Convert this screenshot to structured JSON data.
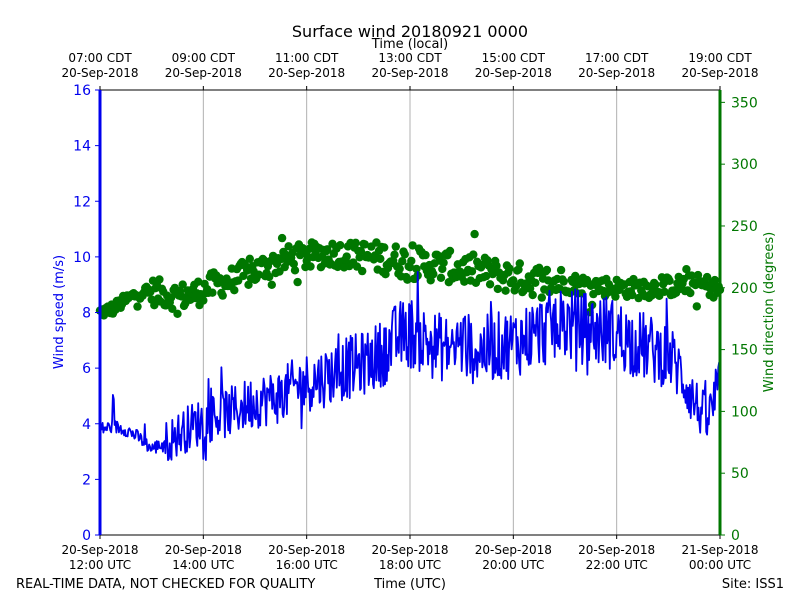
{
  "chart_data": {
    "type": "line+scatter",
    "title": "Surface wind 20180921 0000",
    "top_axis_label": "Time (local)",
    "xlabel": "Time (UTC)",
    "ylabel_left": "Wind speed (m/s)",
    "ylabel_right": "Wind direction (degrees)",
    "left_ylim": [
      0,
      16
    ],
    "right_ylim": [
      0,
      360
    ],
    "left_ticks": [
      "0",
      "2",
      "4",
      "6",
      "8",
      "10",
      "12",
      "14",
      "16"
    ],
    "right_ticks": [
      "0",
      "50",
      "100",
      "150",
      "200",
      "250",
      "300",
      "350"
    ],
    "bottom_ticks": [
      {
        "line1": "20-Sep-2018",
        "line2": "12:00 UTC"
      },
      {
        "line1": "20-Sep-2018",
        "line2": "14:00 UTC"
      },
      {
        "line1": "20-Sep-2018",
        "line2": "16:00 UTC"
      },
      {
        "line1": "20-Sep-2018",
        "line2": "18:00 UTC"
      },
      {
        "line1": "20-Sep-2018",
        "line2": "20:00 UTC"
      },
      {
        "line1": "20-Sep-2018",
        "line2": "22:00 UTC"
      },
      {
        "line1": "21-Sep-2018",
        "line2": "00:00 UTC"
      }
    ],
    "top_ticks": [
      {
        "line1": "07:00 CDT",
        "line2": "20-Sep-2018"
      },
      {
        "line1": "09:00 CDT",
        "line2": "20-Sep-2018"
      },
      {
        "line1": "11:00 CDT",
        "line2": "20-Sep-2018"
      },
      {
        "line1": "13:00 CDT",
        "line2": "20-Sep-2018"
      },
      {
        "line1": "15:00 CDT",
        "line2": "20-Sep-2018"
      },
      {
        "line1": "17:00 CDT",
        "line2": "20-Sep-2018"
      },
      {
        "line1": "19:00 CDT",
        "line2": "20-Sep-2018"
      }
    ],
    "x_range_hours_utc": [
      12,
      24
    ],
    "series": [
      {
        "name": "Wind speed (m/s)",
        "axis": "left",
        "style": "line",
        "color": "#0000ee",
        "hours": [
          12.0,
          12.25,
          12.5,
          12.75,
          13.0,
          13.25,
          13.5,
          13.75,
          14.0,
          14.25,
          14.5,
          14.75,
          15.0,
          15.25,
          15.5,
          15.75,
          16.0,
          16.25,
          16.5,
          16.75,
          17.0,
          17.25,
          17.5,
          17.75,
          18.0,
          18.25,
          18.5,
          18.75,
          19.0,
          19.25,
          19.5,
          19.75,
          20.0,
          20.25,
          20.5,
          20.75,
          21.0,
          21.25,
          21.5,
          21.75,
          22.0,
          22.25,
          22.5,
          22.75,
          23.0,
          23.25,
          23.5,
          23.75,
          24.0
        ],
        "values": [
          3.8,
          3.9,
          3.8,
          3.5,
          3.1,
          3.3,
          3.6,
          3.9,
          4.1,
          4.3,
          4.4,
          4.6,
          4.8,
          4.9,
          5.0,
          5.3,
          5.5,
          5.6,
          5.8,
          6.0,
          6.1,
          6.3,
          6.6,
          7.1,
          7.3,
          7.0,
          6.8,
          6.7,
          6.9,
          6.6,
          6.7,
          6.8,
          6.9,
          7.1,
          7.3,
          7.5,
          7.6,
          7.5,
          7.4,
          7.3,
          7.2,
          7.0,
          6.8,
          6.6,
          6.5,
          5.8,
          4.8,
          4.1,
          5.3
        ]
      },
      {
        "name": "Wind direction (degrees)",
        "axis": "right",
        "style": "scatter",
        "color": "#007700",
        "hours": [
          12.0,
          12.25,
          12.5,
          12.75,
          13.0,
          13.25,
          13.5,
          13.75,
          14.0,
          14.25,
          14.5,
          14.75,
          15.0,
          15.25,
          15.5,
          15.75,
          16.0,
          16.25,
          16.5,
          16.75,
          17.0,
          17.25,
          17.5,
          17.75,
          18.0,
          18.25,
          18.5,
          18.75,
          19.0,
          19.25,
          19.5,
          19.75,
          20.0,
          20.25,
          20.5,
          20.75,
          21.0,
          21.25,
          21.5,
          21.75,
          22.0,
          22.25,
          22.5,
          22.75,
          23.0,
          23.25,
          23.5,
          23.75,
          24.0
        ],
        "values": [
          180,
          183,
          190,
          196,
          197,
          195,
          193,
          194,
          198,
          203,
          205,
          210,
          213,
          218,
          222,
          224,
          225,
          227,
          228,
          227,
          226,
          225,
          224,
          222,
          220,
          219,
          218,
          217,
          215,
          214,
          212,
          210,
          208,
          207,
          206,
          205,
          204,
          203,
          202,
          201,
          200,
          200,
          199,
          200,
          201,
          202,
          203,
          202,
          198
        ]
      }
    ]
  },
  "footer": {
    "left": "REAL-TIME DATA, NOT CHECKED FOR QUALITY",
    "center": "Time (UTC)",
    "right": "Site: ISS1"
  },
  "colors": {
    "speed": "#0000ee",
    "direction": "#007700",
    "grid": "#b0b0b0",
    "frame": "#000000"
  }
}
